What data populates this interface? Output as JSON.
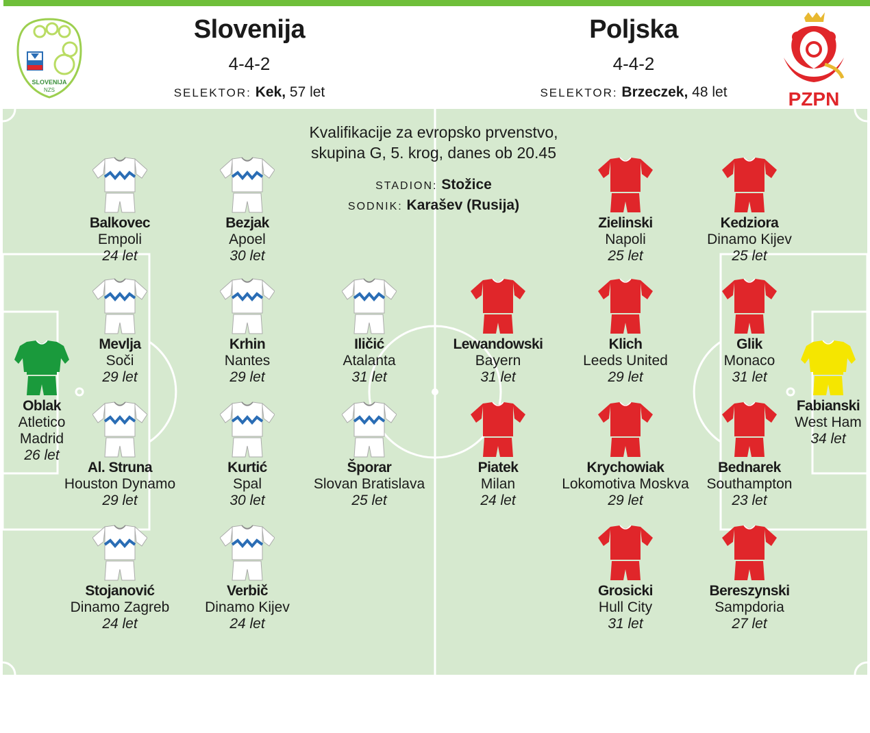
{
  "home": {
    "name": "Slovenija",
    "formation": "4-4-2",
    "coach_label": "SELEKTOR:",
    "coach_name": "Kek,",
    "coach_age": "57 let",
    "logo_text": "SLOVENIJA",
    "logo_sub": "NZS"
  },
  "away": {
    "name": "Poljska",
    "formation": "4-4-2",
    "coach_label": "SELEKTOR:",
    "coach_name": "Brzeczek,",
    "coach_age": "48 let",
    "logo_text": "PZPN"
  },
  "match": {
    "line1": "Kvalifikacije za evropsko prvenstvo,",
    "line2": "skupina G, 5. krog, danes ob 20.45",
    "stadium_label": "STADION:",
    "stadium": "Stožice",
    "referee_label": "SODNIK:",
    "referee": "Karašev (Rusija)"
  },
  "colors": {
    "home_shirt": "#ffffff",
    "home_stripe": "#2a6db5",
    "home_gk": "#1a9a3c",
    "away_shirt": "#e0262a",
    "away_gk": "#f5e600",
    "pitch": "#d6e9cf",
    "accent": "#6fbf3a"
  },
  "players": [
    {
      "name": "Balkovec",
      "club": "Empoli",
      "age": "24 let",
      "kit": "home"
    },
    {
      "name": "Bezjak",
      "club": "Apoel",
      "age": "30 let",
      "kit": "home"
    },
    {
      "name": "Zielinski",
      "club": "Napoli",
      "age": "25 let",
      "kit": "away"
    },
    {
      "name": "Kedziora",
      "club": "Dinamo Kijev",
      "age": "25 let",
      "kit": "away"
    },
    {
      "name": "Mevlja",
      "club": "Soči",
      "age": "29 let",
      "kit": "home"
    },
    {
      "name": "Krhin",
      "club": "Nantes",
      "age": "29 let",
      "kit": "home"
    },
    {
      "name": "Iličić",
      "club": "Atalanta",
      "age": "31 let",
      "kit": "home"
    },
    {
      "name": "Lewandowski",
      "club": "Bayern",
      "age": "31 let",
      "kit": "away"
    },
    {
      "name": "Klich",
      "club": "Leeds United",
      "age": "29 let",
      "kit": "away"
    },
    {
      "name": "Glik",
      "club": "Monaco",
      "age": "31 let",
      "kit": "away"
    },
    {
      "name": "Oblak",
      "club": "Atletico Madrid",
      "age": "26 let",
      "kit": "home_gk"
    },
    {
      "name": "Fabianski",
      "club": "West Ham",
      "age": "34 let",
      "kit": "away_gk"
    },
    {
      "name": "Al. Struna",
      "club": "Houston Dynamo",
      "age": "29 let",
      "kit": "home"
    },
    {
      "name": "Kurtić",
      "club": "Spal",
      "age": "30 let",
      "kit": "home"
    },
    {
      "name": "Šporar",
      "club": "Slovan Bratislava",
      "age": "25 let",
      "kit": "home"
    },
    {
      "name": "Piatek",
      "club": "Milan",
      "age": "24 let",
      "kit": "away"
    },
    {
      "name": "Krychowiak",
      "club": "Lokomotiva Moskva",
      "age": "29 let",
      "kit": "away"
    },
    {
      "name": "Bednarek",
      "club": "Southampton",
      "age": "23 let",
      "kit": "away"
    },
    {
      "name": "Stojanović",
      "club": "Dinamo Zagreb",
      "age": "24 let",
      "kit": "home"
    },
    {
      "name": "Verbič",
      "club": "Dinamo Kijev",
      "age": "24 let",
      "kit": "home"
    },
    {
      "name": "Grosicki",
      "club": "Hull City",
      "age": "31 let",
      "kit": "away"
    },
    {
      "name": "Bereszynski",
      "club": "Sampdoria",
      "age": "27 let",
      "kit": "away"
    }
  ]
}
